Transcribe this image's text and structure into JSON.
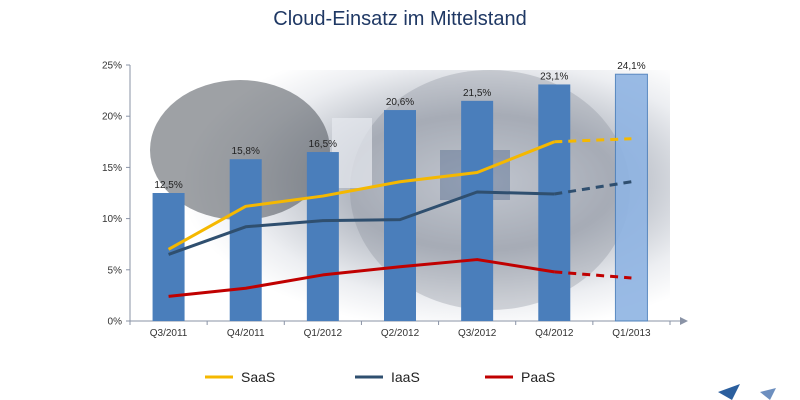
{
  "chart_data": {
    "type": "bar",
    "title": "Cloud-Einsatz im Mittelstand",
    "categories": [
      "Q3/2011",
      "Q4/2011",
      "Q1/2012",
      "Q2/2012",
      "Q3/2012",
      "Q4/2012",
      "Q1/2013"
    ],
    "values": [
      12.5,
      15.8,
      16.5,
      20.6,
      21.5,
      23.1,
      24.1
    ],
    "value_labels": [
      "12,5%",
      "15,8%",
      "16,5%",
      "20,6%",
      "21,5%",
      "23,1%",
      "24,1%"
    ],
    "last_bar_forecast": true,
    "yticks": [
      "0%",
      "5%",
      "10%",
      "15%",
      "20%",
      "25%"
    ],
    "ylim": [
      0,
      25
    ],
    "lines": [
      {
        "name": "SaaS",
        "color": "#f5b800",
        "values": [
          7.0,
          11.2,
          12.2,
          13.6,
          14.5,
          17.5,
          17.8
        ],
        "dashed_from": 5
      },
      {
        "name": "IaaS",
        "color": "#2f4f6f",
        "values": [
          6.5,
          9.2,
          9.8,
          9.9,
          12.6,
          12.4,
          13.6
        ],
        "dashed_from": 5
      },
      {
        "name": "PaaS",
        "color": "#c00000",
        "values": [
          2.4,
          3.2,
          4.5,
          5.3,
          6.0,
          4.8,
          4.2
        ],
        "dashed_from": 5
      }
    ],
    "bar_color": "#4a7ebb",
    "forecast_bar_color": "#8fb4e3",
    "legend_position": "bottom"
  }
}
